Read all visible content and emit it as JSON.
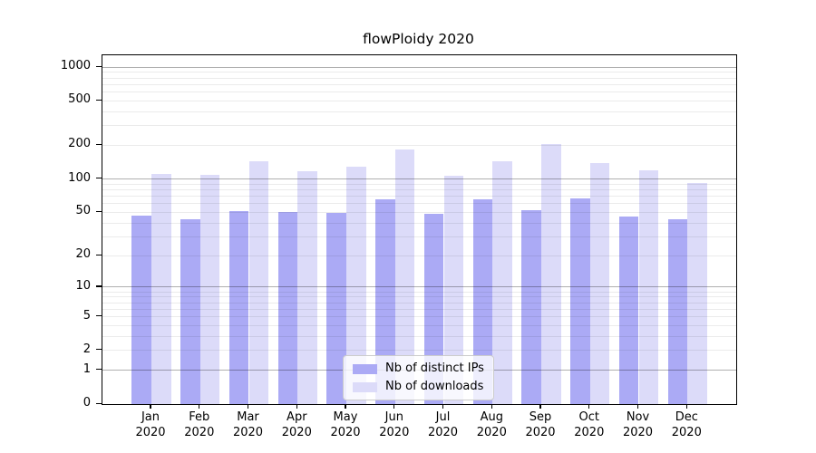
{
  "chart_data": {
    "type": "bar",
    "title": "flowPloidy 2020",
    "xlabel": "",
    "ylabel": "",
    "yscale": "log1p",
    "ylim": [
      0,
      1273
    ],
    "grid": "on",
    "legend_position": "lower center",
    "categories": [
      "Jan",
      "Feb",
      "Mar",
      "Apr",
      "May",
      "Jun",
      "Jul",
      "Aug",
      "Sep",
      "Oct",
      "Nov",
      "Dec"
    ],
    "category_year": "2020",
    "series": [
      {
        "name": "Nb of distinct IPs",
        "color": "#abaaf5",
        "values": [
          47,
          43,
          51,
          50,
          49,
          66,
          48,
          66,
          52,
          67,
          46,
          43
        ]
      },
      {
        "name": "Nb of downloads",
        "color": "#dcdbf9",
        "values": [
          110,
          108,
          145,
          118,
          130,
          185,
          107,
          143,
          205,
          138,
          120,
          92
        ]
      }
    ],
    "ytick_labels": [
      0,
      1,
      2,
      5,
      10,
      20,
      50,
      100,
      200,
      500,
      1000
    ],
    "major_gridlines": [
      1,
      10,
      100,
      1000
    ],
    "minor_gridlines": [
      2,
      3,
      4,
      5,
      6,
      7,
      8,
      9,
      20,
      30,
      40,
      50,
      60,
      70,
      80,
      90,
      200,
      300,
      400,
      500,
      600,
      700,
      800,
      900
    ],
    "colors": {
      "grid_major": "#b0b0b0",
      "grid_minor": "#ebebeb",
      "spine": "#000000",
      "legend_border": "#cccccc",
      "legend_background": "#ffffff"
    }
  }
}
